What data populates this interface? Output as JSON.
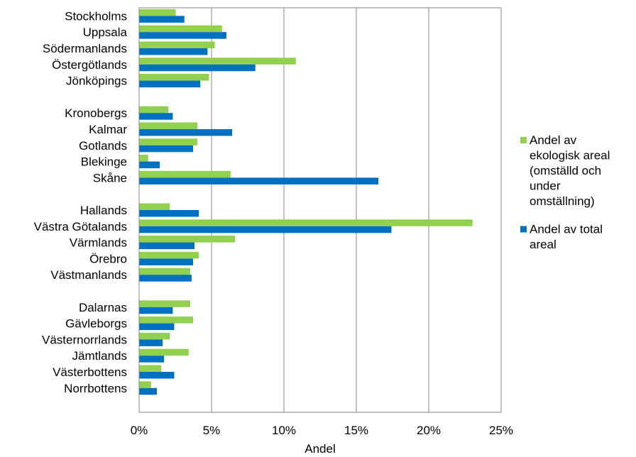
{
  "chart_data": {
    "type": "bar",
    "orientation": "horizontal",
    "categories": [
      "Stockholms",
      "Uppsala",
      "Södermanlands",
      "Östergötlands",
      "Jönköpings",
      "Kronobergs",
      "Kalmar",
      "Gotlands",
      "Blekinge",
      "Skåne",
      "Hallands",
      "Västra Götalands",
      "Värmlands",
      "Örebro",
      "Västmanlands",
      "Dalarnas",
      "Gävleborgs",
      "Västernorrlands",
      "Jämtlands",
      "Västerbottens",
      "Norrbottens"
    ],
    "groups": [
      5,
      5,
      5,
      6
    ],
    "series": [
      {
        "name_lines": [
          "Andel av",
          "ekologisk areal",
          "(omställd och",
          "under",
          "omställning)"
        ],
        "color": "#92D050",
        "values": [
          2.5,
          5.7,
          5.2,
          10.8,
          4.8,
          2.0,
          4.0,
          4.0,
          0.6,
          6.3,
          2.1,
          23.0,
          6.6,
          4.1,
          3.5,
          3.5,
          3.7,
          2.1,
          3.4,
          1.5,
          0.8
        ]
      },
      {
        "name_lines": [
          "Andel av total",
          "areal"
        ],
        "color": "#0070C0",
        "values": [
          3.1,
          6.0,
          4.7,
          8.0,
          4.2,
          2.3,
          6.4,
          3.7,
          1.4,
          16.5,
          4.1,
          17.4,
          3.8,
          3.7,
          3.6,
          2.3,
          2.4,
          1.6,
          1.7,
          2.4,
          1.2
        ]
      }
    ],
    "xlim": [
      0,
      25
    ],
    "xticks": [
      0,
      5,
      10,
      15,
      20,
      25
    ],
    "xtick_labels": [
      "0%",
      "5%",
      "10%",
      "15%",
      "20%",
      "25%"
    ],
    "xlabel": "Andel",
    "ylabel": "",
    "title": "",
    "grid": "vertical",
    "legend_position": "right"
  }
}
